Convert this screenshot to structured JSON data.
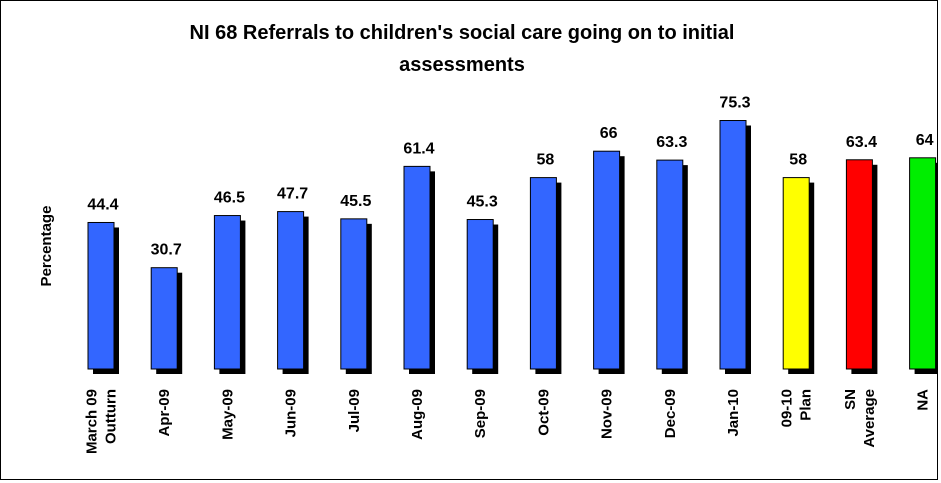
{
  "chart_data": {
    "type": "bar",
    "title": "NI 68 Referrals to children's social care going on to initial assessments",
    "title_lines": [
      "NI 68 Referrals to children's social care going on to initial",
      "assessments"
    ],
    "xlabel": "",
    "ylabel": "Percentage",
    "grid": false,
    "legend": "none",
    "ylim": [
      0,
      80
    ],
    "categories": [
      [
        "March 09",
        "Outturn"
      ],
      [
        "Apr-09"
      ],
      [
        "May-09"
      ],
      [
        "Jun-09"
      ],
      [
        "Jul-09"
      ],
      [
        "Aug-09"
      ],
      [
        "Sep-09"
      ],
      [
        "Oct-09"
      ],
      [
        "Nov-09"
      ],
      [
        "Dec-09"
      ],
      [
        "Jan-10"
      ],
      [
        "09-10",
        "Plan"
      ],
      [
        "SN",
        "Average"
      ],
      [
        "NA"
      ]
    ],
    "values": [
      44.4,
      30.7,
      46.5,
      47.7,
      45.5,
      61.4,
      45.3,
      58,
      66,
      63.3,
      75.3,
      58,
      63.4,
      64
    ],
    "data_labels": [
      "44.4",
      "30.7",
      "46.5",
      "47.7",
      "45.5",
      "61.4",
      "45.3",
      "58",
      "66",
      "63.3",
      "75.3",
      "58",
      "63.4",
      "64"
    ],
    "colors": [
      "#3366ff",
      "#3366ff",
      "#3366ff",
      "#3366ff",
      "#3366ff",
      "#3366ff",
      "#3366ff",
      "#3366ff",
      "#3366ff",
      "#3366ff",
      "#3366ff",
      "#ffff00",
      "#ff0000",
      "#00ee00"
    ],
    "shadow_color": "#000000"
  }
}
